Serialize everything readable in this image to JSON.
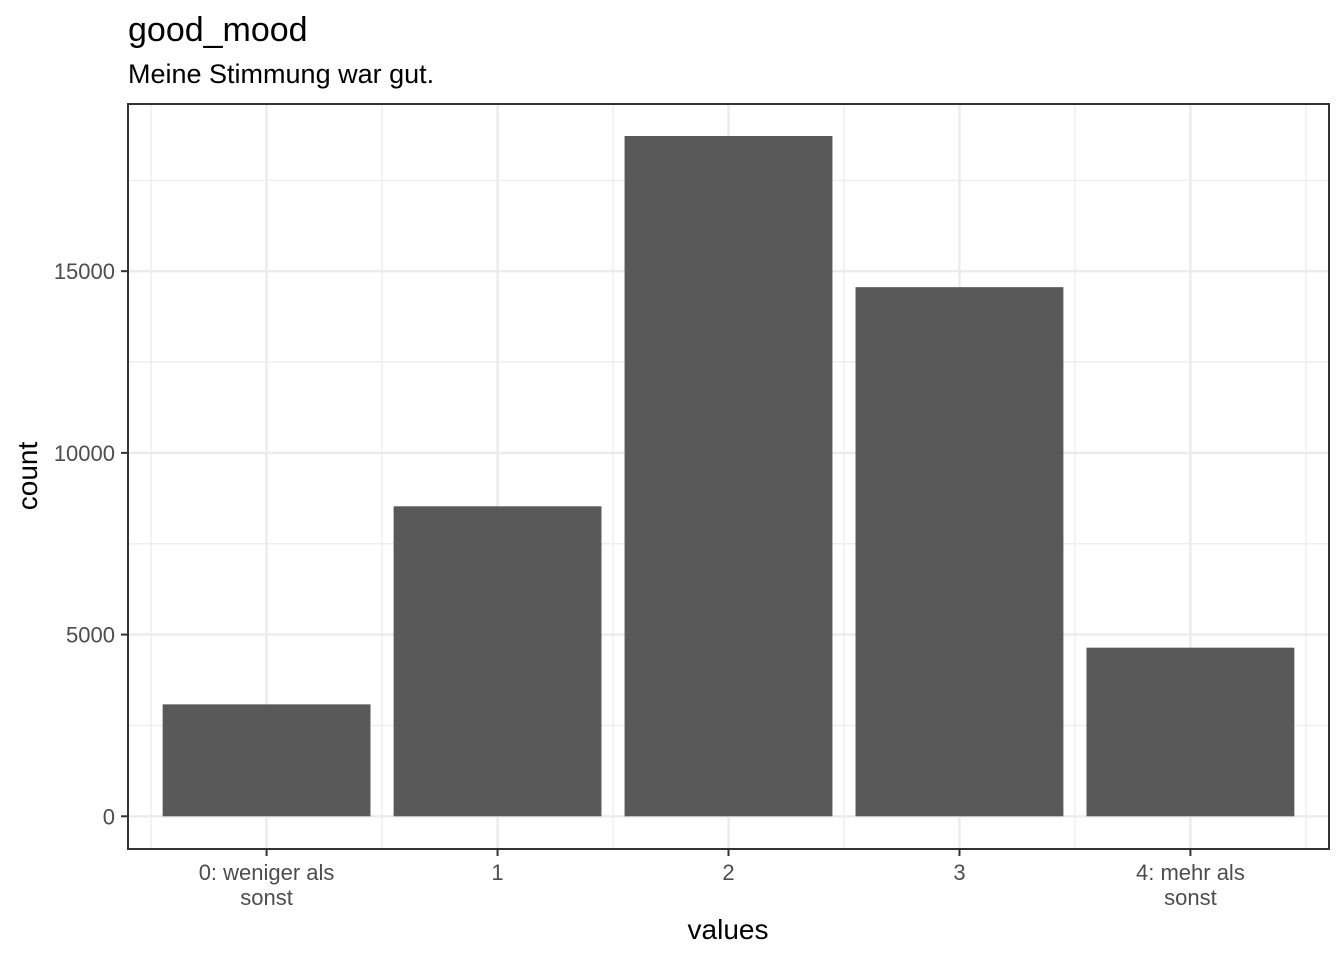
{
  "chart_data": {
    "type": "bar",
    "title": "good_mood",
    "subtitle": "Meine Stimmung war gut.",
    "xlabel": "values",
    "ylabel": "count",
    "categories": [
      [
        "0: weniger als",
        "sonst"
      ],
      [
        "1"
      ],
      [
        "2"
      ],
      [
        "3"
      ],
      [
        "4: mehr als",
        "sonst"
      ]
    ],
    "values": [
      3080,
      8530,
      18720,
      14560,
      4640
    ],
    "ylim": [
      -900,
      19600
    ],
    "yticks": [
      0,
      5000,
      10000,
      15000
    ],
    "ytick_labels": [
      "0",
      "5000",
      "10000",
      "15000"
    ],
    "grid": true,
    "bar_color": "#595959",
    "grid_color": "#ebebeb",
    "panel_border_color": "#333333"
  }
}
